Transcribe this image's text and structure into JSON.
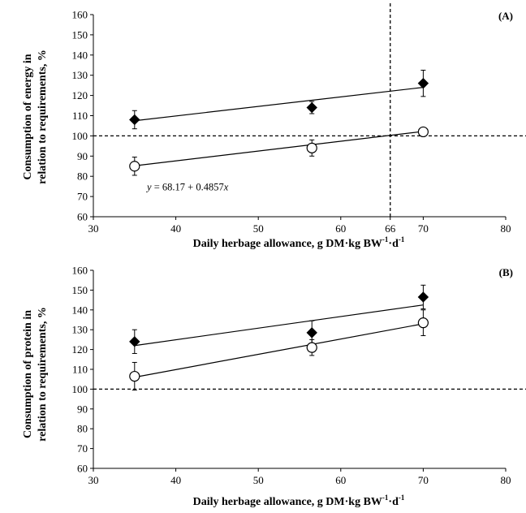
{
  "chart_data": [
    {
      "type": "scatter",
      "panel_label": "(A)",
      "xlabel_main": "Daily herbage allowance, g DM·kg BW",
      "xlabel_sup1": "-1",
      "xlabel_mid": "·d",
      "xlabel_sup2": "-1",
      "ylabel_line1": "Consumption of energy in",
      "ylabel_line2": "relation to requirements, %",
      "xlim": [
        30,
        80
      ],
      "ylim": [
        60,
        160
      ],
      "xticks": [
        "30",
        "40",
        "50",
        "60",
        "66",
        "70",
        "80"
      ],
      "yticks": [
        "60",
        "70",
        "80",
        "90",
        "100",
        "110",
        "120",
        "130",
        "140",
        "150",
        "160"
      ],
      "reference_lines": {
        "horizontal_y": 100,
        "vertical_x": 66
      },
      "annotation": "y = 68.17 + 0.4857x",
      "series": [
        {
          "marker": "filled-diamond",
          "x": [
            35,
            56.5,
            70
          ],
          "y": [
            108,
            114,
            126
          ],
          "err": [
            4.5,
            3,
            6.5
          ],
          "fit": [
            [
              35,
              107.5
            ],
            [
              70,
              124
            ]
          ]
        },
        {
          "marker": "open-circle",
          "x": [
            35,
            56.5,
            70
          ],
          "y": [
            85,
            94,
            102
          ],
          "err": [
            4.5,
            4,
            2
          ],
          "fit": [
            [
              35,
              85.2
            ],
            [
              70,
              102.2
            ]
          ]
        }
      ]
    },
    {
      "type": "scatter",
      "panel_label": "(B)",
      "xlabel_main": "Daily herbage allowance, g DM·kg BW",
      "xlabel_sup1": "-1",
      "xlabel_mid": "·d",
      "xlabel_sup2": "-1",
      "ylabel_line1": "Consumption of protein in",
      "ylabel_line2": "relation to requirements, %",
      "xlim": [
        30,
        80
      ],
      "ylim": [
        60,
        160
      ],
      "xticks": [
        "30",
        "40",
        "50",
        "60",
        "70",
        "80"
      ],
      "yticks": [
        "60",
        "70",
        "80",
        "90",
        "100",
        "110",
        "120",
        "130",
        "140",
        "150",
        "160"
      ],
      "reference_lines": {
        "horizontal_y": 100
      },
      "series": [
        {
          "marker": "filled-diamond",
          "x": [
            35,
            56.5,
            70
          ],
          "y": [
            124,
            128.5,
            146.5
          ],
          "err": [
            6,
            6,
            6
          ],
          "fit": [
            [
              35,
              122
            ],
            [
              70,
              142.5
            ]
          ]
        },
        {
          "marker": "open-circle",
          "x": [
            35,
            56.5,
            70
          ],
          "y": [
            106.5,
            121,
            133.5
          ],
          "err": [
            7,
            4,
            6.5
          ],
          "fit": [
            [
              35,
              106
            ],
            [
              70,
              133
            ]
          ]
        }
      ]
    }
  ]
}
